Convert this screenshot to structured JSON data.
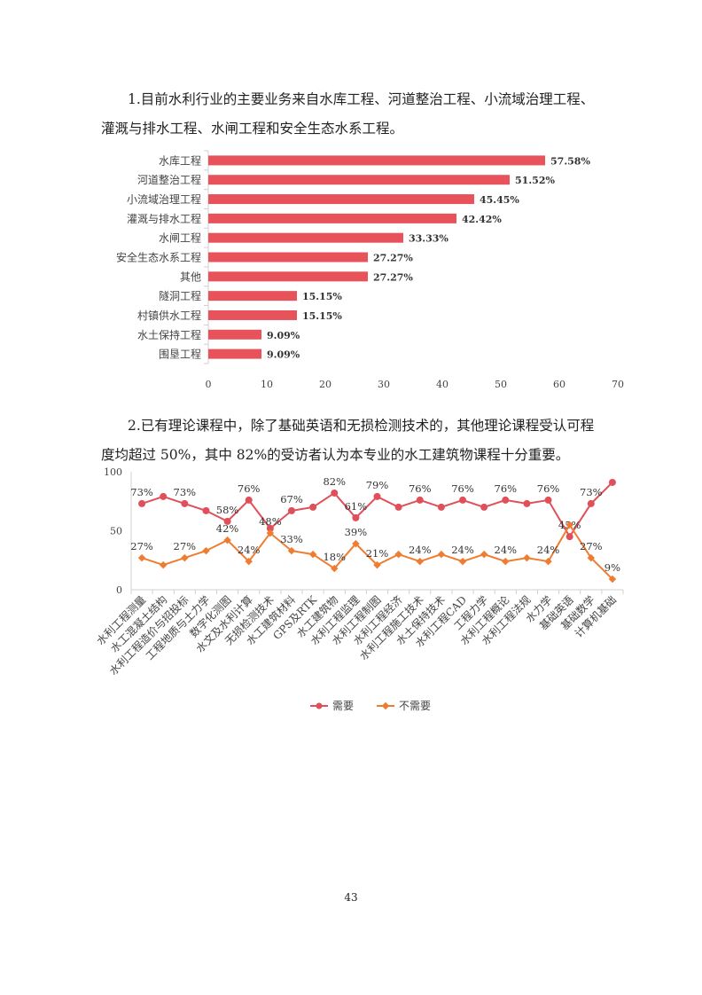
{
  "paragraph1_line1": "1.目前水利行业的主要业务来自水库工程、河道整治工程、小流域治理工程、",
  "paragraph1_line2": "灌溉与排水工程、水闸工程和安全生态水系工程。",
  "paragraph2_line1": "2.已有理论课程中，除了基础英语和无损检测技术的，其他理论课程受认可程",
  "paragraph2_line2": "度均超过 50%，其中 82%的受访者认为本专业的水工建筑物课程十分重要。",
  "page_number": "43",
  "chart_data": [
    {
      "type": "bar",
      "orientation": "horizontal",
      "categories": [
        "水库工程",
        "河道整治工程",
        "小流域治理工程",
        "灌溉与排水工程",
        "水闸工程",
        "安全生态水系工程",
        "其他",
        "隧洞工程",
        "村镇供水工程",
        "水土保持工程",
        "围垦工程"
      ],
      "values": [
        57.58,
        51.52,
        45.45,
        42.42,
        33.33,
        27.27,
        27.27,
        15.15,
        15.15,
        9.09,
        9.09
      ],
      "data_labels": [
        "57.58%",
        "51.52%",
        "45.45%",
        "42.42%",
        "33.33%",
        "27.27%",
        "27.27%",
        "15.15%",
        "15.15%",
        "9.09%",
        "9.09%"
      ],
      "xlim": [
        0,
        70
      ],
      "xticks": [
        0,
        10,
        20,
        30,
        40,
        50,
        60,
        70
      ],
      "grid": false,
      "color": "#e8525a"
    },
    {
      "type": "line",
      "categories": [
        "水利工程测量",
        "水工混凝土结构",
        "水利工程造价与招投标",
        "工程地质与土力学",
        "数字化测图",
        "水文及水利计算",
        "无损检测技术",
        "水工建筑材料",
        "GPS及RTK",
        "水工建筑物",
        "水利工程监理",
        "水利工程制图",
        "水利工程经济",
        "水利工程施工技术",
        "水土保持技术",
        "水利工程CAD",
        "工程力学",
        "水利工程概论",
        "水利工程法规",
        "水力学",
        "基础英语",
        "基础数学",
        "计算机基础"
      ],
      "ylim": [
        0,
        100
      ],
      "yticks": [
        0,
        50,
        100
      ],
      "grid": false,
      "legend": "bottom",
      "series": [
        {
          "name": "需要",
          "color": "#e0505a",
          "marker": "circle",
          "values": [
            73,
            79,
            73,
            67,
            58,
            76,
            52,
            67,
            70,
            82,
            61,
            79,
            70,
            76,
            70,
            76,
            70,
            76,
            73,
            76,
            45,
            73,
            91
          ],
          "labels": [
            "73%",
            "",
            "73%",
            "",
            "58%",
            "76%",
            "",
            "67%",
            "",
            "82%",
            "61%",
            "79%",
            "",
            "76%",
            "",
            "76%",
            "",
            "76%",
            "",
            "76%",
            "45%",
            "73%",
            ""
          ]
        },
        {
          "name": "不需要",
          "color": "#ef7d31",
          "marker": "diamond",
          "values": [
            27,
            21,
            27,
            33,
            42,
            24,
            48,
            33,
            30,
            18,
            39,
            21,
            30,
            24,
            30,
            24,
            30,
            24,
            27,
            24,
            55,
            27,
            9
          ],
          "labels": [
            "27%",
            "",
            "27%",
            "",
            "42%",
            "24%",
            "48%",
            "33%",
            "",
            "18%",
            "39%",
            "21%",
            "",
            "24%",
            "",
            "24%",
            "",
            "24%",
            "",
            "24%",
            "",
            "27%",
            "9%"
          ]
        }
      ]
    }
  ]
}
